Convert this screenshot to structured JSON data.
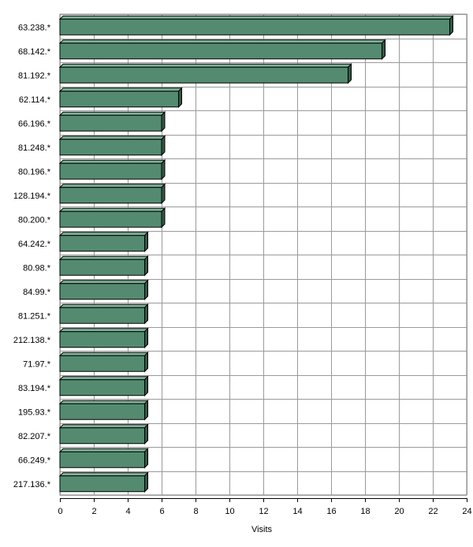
{
  "chart_data": {
    "type": "bar",
    "orientation": "horizontal",
    "categories": [
      "63.238.*",
      "68.142.*",
      "81.192.*",
      "62.114.*",
      "66.196.*",
      "81.248.*",
      "80.196.*",
      "128.194.*",
      "80.200.*",
      "64.242.*",
      "80.98.*",
      "84.99.*",
      "81.251.*",
      "212.138.*",
      "71.97.*",
      "83.194.*",
      "195.93.*",
      "82.207.*",
      "66.249.*",
      "217.136.*"
    ],
    "values": [
      23,
      19,
      17,
      7,
      6,
      6,
      6,
      6,
      6,
      5,
      5,
      5,
      5,
      5,
      5,
      5,
      5,
      5,
      5,
      5
    ],
    "xlabel": "Visits",
    "xlim": [
      0,
      24
    ],
    "xticks": [
      0,
      2,
      4,
      6,
      8,
      10,
      12,
      14,
      16,
      18,
      20,
      22,
      24
    ],
    "grid": true,
    "bar_color": "#548b70"
  }
}
